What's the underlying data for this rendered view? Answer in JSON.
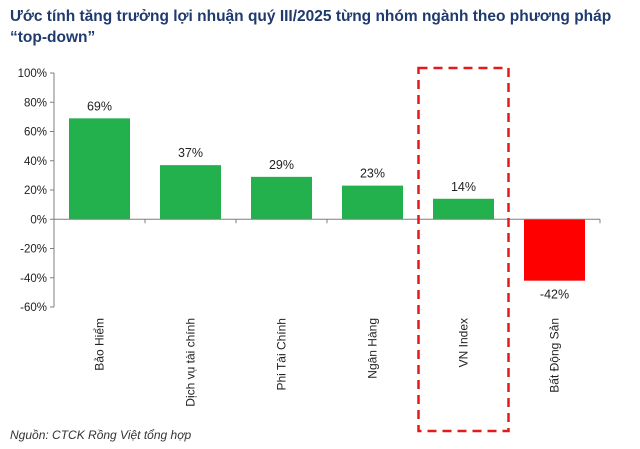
{
  "title": "Ước tính tăng trưởng lợi nhuận quý III/2025 từng nhóm ngành theo phương pháp “top-down”",
  "source": "Nguồn:  CTCK Rồng Việt tổng hợp",
  "colors": {
    "positive": "#22b14c",
    "negative": "#ff0000",
    "highlight_box": "#e31a1c",
    "title": "#1f3b6e"
  },
  "chart_data": {
    "type": "bar",
    "title": "Ước tính tăng trưởng lợi nhuận quý III/2025 từng nhóm ngành theo phương pháp “top-down”",
    "categories": [
      "Bảo Hiểm",
      "Dịch vụ tài chính",
      "Phi Tài Chính",
      "Ngân Hàng",
      "VN Index",
      "Bất Động Sản"
    ],
    "values": [
      69,
      37,
      29,
      23,
      14,
      -42
    ],
    "value_labels": [
      "69%",
      "37%",
      "29%",
      "23%",
      "14%",
      "-42%"
    ],
    "yticks": [
      100,
      80,
      60,
      40,
      20,
      0,
      -20,
      -40,
      -60
    ],
    "ytick_labels": [
      "100%",
      "80%",
      "60%",
      "40%",
      "20%",
      "0%",
      "-20%",
      "-40%",
      "-60%"
    ],
    "ylim": [
      -60,
      100
    ],
    "xlabel": "",
    "ylabel": "",
    "grid": false,
    "legend": "none",
    "highlighted_category": "VN Index",
    "bar_colors": [
      "#22b14c",
      "#22b14c",
      "#22b14c",
      "#22b14c",
      "#22b14c",
      "#ff0000"
    ]
  }
}
